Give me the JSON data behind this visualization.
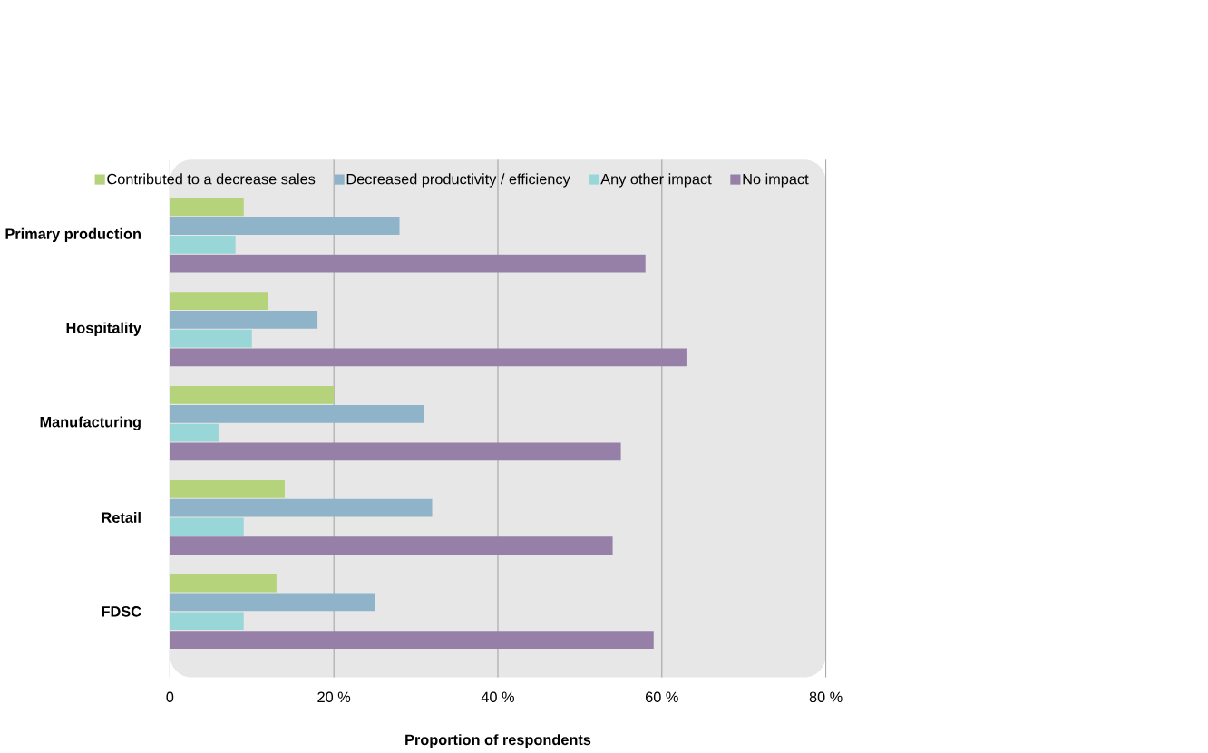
{
  "chart_data": {
    "type": "bar",
    "orientation": "horizontal",
    "xlabel": "Proportion of respondents",
    "categories": [
      "Primary production",
      "Hospitality",
      "Manufacturing",
      "Retail",
      "FDSC"
    ],
    "series": [
      {
        "name": "Contributed to a decrease sales",
        "color": "#b5d37a",
        "values": [
          9,
          12,
          20,
          14,
          13
        ]
      },
      {
        "name": "Decreased productivity / efficiency",
        "color": "#8fb3c8",
        "values": [
          28,
          18,
          31,
          32,
          25
        ]
      },
      {
        "name": "Any other impact",
        "color": "#98d6d8",
        "values": [
          8,
          10,
          6,
          9,
          9
        ]
      },
      {
        "name": "No impact",
        "color": "#9680a8",
        "values": [
          58,
          63,
          55,
          54,
          59
        ]
      }
    ],
    "xlim": [
      0,
      80
    ],
    "xticks": [
      0,
      {
        "value": 20,
        "label": "20 %"
      },
      {
        "value": 40,
        "label": "40 %"
      },
      {
        "value": 60,
        "label": "60 %"
      },
      {
        "value": 80,
        "label": "80 %"
      }
    ],
    "grid": "x",
    "legend": "top"
  }
}
